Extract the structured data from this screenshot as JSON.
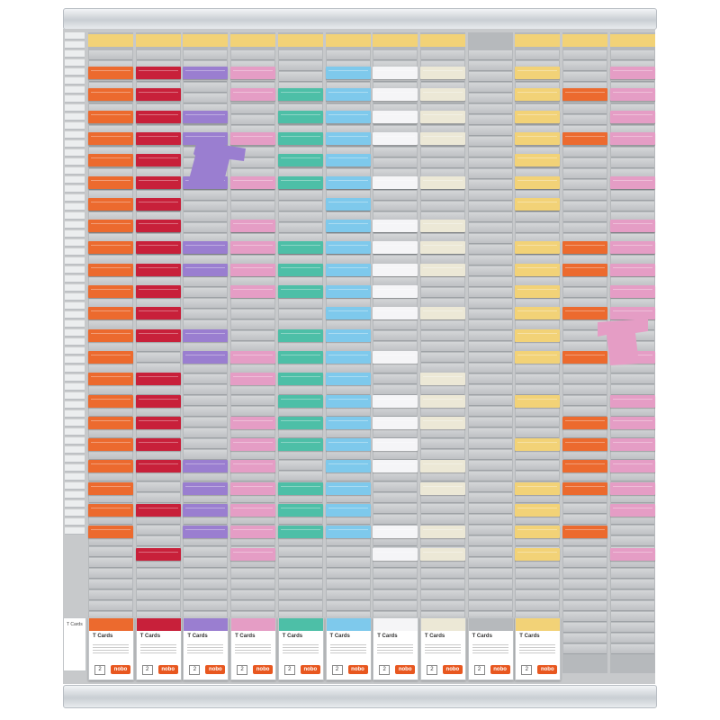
{
  "board": {
    "column_count": 12,
    "header_colors": [
      "#f2d277",
      "#f2d277",
      "#f2d277",
      "#f2d277",
      "#f2d277",
      "#f2d277",
      "#f2d277",
      "#f2d277",
      "#b6b9bc",
      "#f2d277",
      "#f2d277",
      "#f2d277"
    ],
    "card_colors": [
      "#ec6a2e",
      "#c8203a",
      "#9a7ed0",
      "#e59dc5",
      "#4dbfa7",
      "#7ec9ec",
      "#f5f5f7",
      "#ece8d6",
      "#b6b9bc",
      "#f2d277",
      "#ec6a2e",
      "#e59dc5"
    ],
    "cards_per_column": [
      [
        0,
        1,
        2,
        3,
        4,
        5,
        6,
        7,
        8,
        9,
        10,
        11,
        12,
        13,
        14,
        15,
        16,
        17,
        18,
        19,
        20,
        21
      ],
      [
        0,
        1,
        2,
        3,
        4,
        5,
        6,
        7,
        8,
        9,
        10,
        11,
        12,
        14,
        15,
        16,
        17,
        18,
        20,
        22
      ],
      [
        0,
        2,
        3,
        5,
        8,
        9,
        12,
        13,
        18,
        19,
        20,
        21
      ],
      [
        0,
        1,
        3,
        5,
        7,
        8,
        9,
        10,
        13,
        14,
        16,
        17,
        18,
        19,
        20,
        21,
        22
      ],
      [
        1,
        2,
        3,
        4,
        5,
        8,
        9,
        10,
        12,
        13,
        14,
        15,
        16,
        17,
        19,
        20,
        21
      ],
      [
        0,
        1,
        2,
        3,
        4,
        5,
        6,
        7,
        8,
        9,
        10,
        11,
        12,
        13,
        14,
        15,
        16,
        17,
        18,
        19,
        20,
        21
      ],
      [
        0,
        1,
        2,
        3,
        5,
        7,
        8,
        9,
        10,
        11,
        13,
        15,
        16,
        17,
        18,
        21,
        22
      ],
      [
        0,
        1,
        2,
        3,
        5,
        7,
        8,
        9,
        11,
        14,
        15,
        16,
        18,
        19,
        21,
        22
      ],
      [],
      [
        0,
        1,
        2,
        3,
        4,
        5,
        6,
        8,
        9,
        10,
        11,
        12,
        13,
        15,
        17,
        19,
        20,
        21,
        22
      ],
      [
        1,
        3,
        8,
        9,
        11,
        13,
        16,
        17,
        18,
        19,
        21
      ],
      [
        0,
        1,
        2,
        3,
        5,
        7,
        8,
        9,
        10,
        11,
        13,
        15,
        16,
        17,
        18,
        19,
        20,
        22
      ]
    ],
    "boxes": [
      {
        "title": "T Cards",
        "num": "2",
        "logo": "nobo",
        "color": "#ec6a2e"
      },
      {
        "title": "T Cards",
        "num": "2",
        "logo": "nobo",
        "color": "#c8203a"
      },
      {
        "title": "T Cards",
        "num": "2",
        "logo": "nobo",
        "color": "#9a7ed0"
      },
      {
        "title": "T Cards",
        "num": "2",
        "logo": "nobo",
        "color": "#e59dc5"
      },
      {
        "title": "T Cards",
        "num": "2",
        "logo": "nobo",
        "color": "#4dbfa7"
      },
      {
        "title": "T Cards",
        "num": "2",
        "logo": "nobo",
        "color": "#7ec9ec"
      },
      {
        "title": "T Cards",
        "num": "2",
        "logo": "nobo",
        "color": "#f5f5f7"
      },
      {
        "title": "T Cards",
        "num": "2",
        "logo": "nobo",
        "color": "#ece8d6"
      },
      {
        "title": "T Cards",
        "num": "2",
        "logo": "nobo",
        "color": "#b6b9bc"
      },
      {
        "title": "T Cards",
        "num": "2",
        "logo": "nobo",
        "color": "#f2d277"
      }
    ],
    "small_box_title": "T Cards",
    "loose_cards": [
      {
        "color": "#9a7ed0"
      },
      {
        "color": "#e59dc5"
      }
    ]
  }
}
